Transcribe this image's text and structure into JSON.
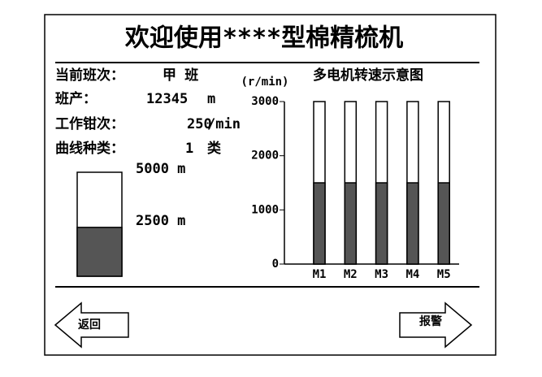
{
  "header": {
    "title": "欢迎使用****型棉精梳机"
  },
  "info": [
    {
      "label": "当前班次：",
      "value": "甲 班"
    },
    {
      "label": "班产：",
      "value": "12345",
      "unit": "m"
    },
    {
      "label": "工作钳次：",
      "value": "250",
      "unit": "/min"
    },
    {
      "label": "曲线种类：",
      "value": "1",
      "unit": "类"
    }
  ],
  "gauge": {
    "value": 2350,
    "ylim": [
      0,
      5000
    ],
    "yticks": [
      {
        "value": 2500,
        "label": "2500 m"
      },
      {
        "value": 5000,
        "label": "5000 m"
      }
    ],
    "color": "#555555"
  },
  "chart_data": {
    "type": "bar",
    "title": "多电机转速示意图",
    "y_label": "(r/min)",
    "categories": [
      "M1",
      "M2",
      "M3",
      "M4",
      "M5"
    ],
    "values": [
      1500,
      1500,
      1500,
      1500,
      1500
    ],
    "color": "#555555",
    "ylim": [
      0,
      3000
    ],
    "yticks": [
      0,
      1000,
      2000,
      3000
    ]
  },
  "buttons": {
    "back": "返回",
    "alarm": "报警"
  }
}
